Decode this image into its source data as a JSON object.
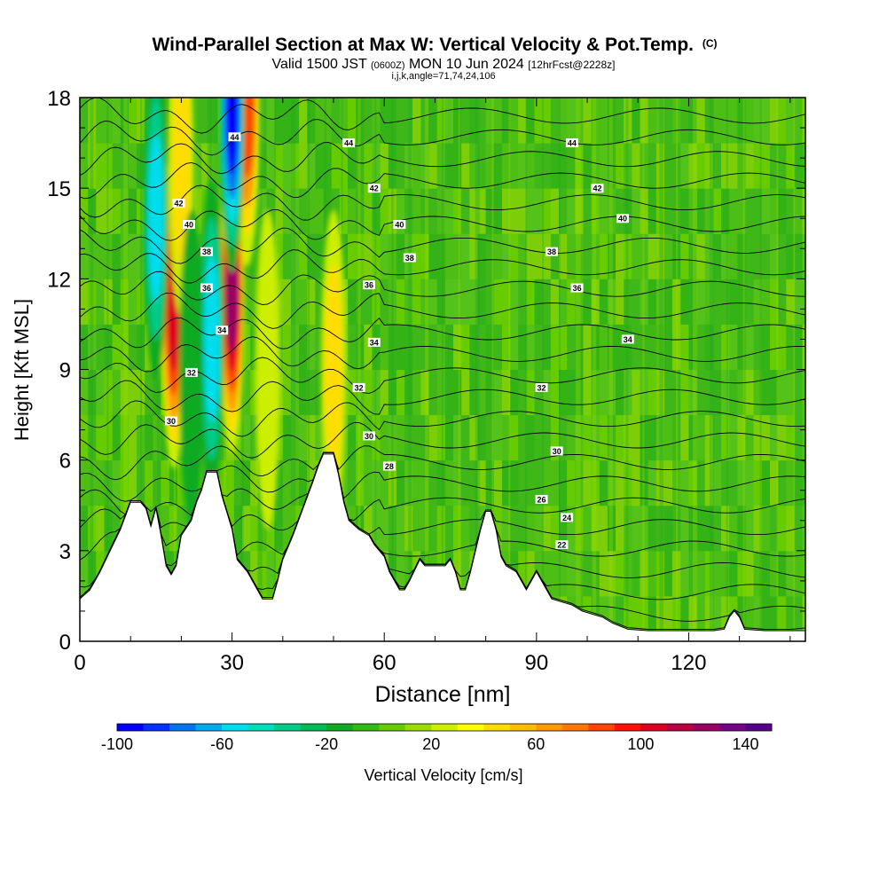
{
  "chart_data": {
    "type": "heatmap",
    "title": "Wind-Parallel Section at Max W: Vertical Velocity & Pot.Temp.",
    "title_mark": "(C)",
    "subtitle_valid": "Valid 1500 JST",
    "subtitle_utc": "(0600Z)",
    "subtitle_date": "MON 10 Jun 2024",
    "subtitle_fcst": "[12hrFcst@2228z]",
    "subtitle_indices": "i,j,k,angle=71,74,24,106",
    "xlabel": "Distance [nm]",
    "ylabel": "Height [Kft MSL]",
    "xlim": [
      0,
      143
    ],
    "ylim": [
      0,
      18
    ],
    "x_ticks": [
      0,
      30,
      60,
      90,
      120
    ],
    "x_tick_labels": [
      "0",
      "30",
      "60",
      "90",
      "120"
    ],
    "y_ticks": [
      0,
      3,
      6,
      9,
      12,
      15,
      18
    ],
    "y_tick_labels": [
      "0",
      "3",
      "6",
      "9",
      "12",
      "15",
      "18"
    ],
    "colorbar": {
      "label": "Vertical Velocity [cm/s]",
      "min": -100,
      "max": 150,
      "step": 10,
      "tick_values": [
        -100,
        -60,
        -20,
        20,
        60,
        100,
        140
      ],
      "tick_labels": [
        "-100",
        "-60",
        "-20",
        "20",
        "60",
        "100",
        "140"
      ],
      "colors": [
        "#0000ff",
        "#0033ff",
        "#0077ee",
        "#00aaee",
        "#00ddee",
        "#00ddbb",
        "#00cc88",
        "#00bb55",
        "#11aa22",
        "#33bb11",
        "#66cc00",
        "#99dd00",
        "#ccee00",
        "#ffff00",
        "#ffdd00",
        "#ffbb00",
        "#ff9900",
        "#ff7700",
        "#ff4400",
        "#ff1100",
        "#dd0022",
        "#bb0044",
        "#990066",
        "#770088",
        "#550088"
      ]
    },
    "terrain": [
      [
        0,
        1.4
      ],
      [
        2,
        1.7
      ],
      [
        4,
        2.3
      ],
      [
        6,
        3.0
      ],
      [
        8,
        3.7
      ],
      [
        10,
        4.6
      ],
      [
        12,
        4.6
      ],
      [
        13,
        4.4
      ],
      [
        14,
        3.8
      ],
      [
        15,
        4.4
      ],
      [
        16,
        3.5
      ],
      [
        17,
        2.5
      ],
      [
        18,
        2.2
      ],
      [
        19,
        2.5
      ],
      [
        20,
        3.5
      ],
      [
        22,
        4.0
      ],
      [
        23,
        4.6
      ],
      [
        24,
        5.0
      ],
      [
        25,
        5.6
      ],
      [
        27,
        5.6
      ],
      [
        28,
        4.8
      ],
      [
        30,
        3.7
      ],
      [
        31,
        2.7
      ],
      [
        33,
        2.3
      ],
      [
        34,
        2.0
      ],
      [
        35,
        1.7
      ],
      [
        36,
        1.4
      ],
      [
        38,
        1.4
      ],
      [
        39,
        2.0
      ],
      [
        40,
        2.7
      ],
      [
        42,
        3.5
      ],
      [
        44,
        4.4
      ],
      [
        46,
        5.3
      ],
      [
        47,
        5.8
      ],
      [
        48,
        6.2
      ],
      [
        50,
        6.2
      ],
      [
        51,
        5.5
      ],
      [
        52,
        4.6
      ],
      [
        53,
        4.0
      ],
      [
        55,
        3.7
      ],
      [
        57,
        3.5
      ],
      [
        58,
        3.2
      ],
      [
        60,
        2.8
      ],
      [
        61,
        2.3
      ],
      [
        62,
        2.0
      ],
      [
        63,
        1.7
      ],
      [
        64,
        1.7
      ],
      [
        65,
        2.0
      ],
      [
        67,
        2.7
      ],
      [
        68,
        2.5
      ],
      [
        70,
        2.5
      ],
      [
        72,
        2.5
      ],
      [
        73,
        2.7
      ],
      [
        74,
        2.3
      ],
      [
        75,
        1.7
      ],
      [
        76,
        1.7
      ],
      [
        77,
        2.3
      ],
      [
        79,
        3.7
      ],
      [
        80,
        4.3
      ],
      [
        81,
        4.3
      ],
      [
        82,
        3.7
      ],
      [
        83,
        2.8
      ],
      [
        84,
        2.5
      ],
      [
        86,
        2.3
      ],
      [
        87,
        2.0
      ],
      [
        88,
        1.7
      ],
      [
        89,
        2.0
      ],
      [
        90,
        2.3
      ],
      [
        91,
        2.0
      ],
      [
        92,
        1.7
      ],
      [
        93,
        1.4
      ],
      [
        95,
        1.3
      ],
      [
        97,
        1.2
      ],
      [
        99,
        1.0
      ],
      [
        101,
        0.9
      ],
      [
        103,
        0.8
      ],
      [
        105,
        0.6
      ],
      [
        108,
        0.4
      ],
      [
        112,
        0.35
      ],
      [
        118,
        0.35
      ],
      [
        125,
        0.35
      ],
      [
        127,
        0.4
      ],
      [
        128,
        0.8
      ],
      [
        129,
        1.0
      ],
      [
        130,
        0.8
      ],
      [
        131,
        0.4
      ],
      [
        135,
        0.35
      ],
      [
        140,
        0.35
      ],
      [
        143,
        0.35
      ]
    ],
    "updrafts": [
      {
        "x": 18.5,
        "y": 11.0,
        "peak_w": 110
      },
      {
        "x": 30.0,
        "y": 11.5,
        "peak_w": 120
      },
      {
        "x": 33.0,
        "y": 17.7,
        "peak_w": 80
      },
      {
        "x": 20.0,
        "y": 16.0,
        "peak_w": 40
      },
      {
        "x": 50.0,
        "y": 9.0,
        "peak_w": 40
      },
      {
        "x": 37.0,
        "y": 9.0,
        "peak_w": 25
      }
    ],
    "downdrafts": [
      {
        "x": 30.0,
        "y": 17.5,
        "peak_w": -100
      },
      {
        "x": 26.0,
        "y": 10.0,
        "peak_w": -70
      },
      {
        "x": 15.0,
        "y": 14.0,
        "peak_w": -60
      },
      {
        "x": 22.0,
        "y": 9.0,
        "peak_w": -30
      }
    ],
    "theta_contours": {
      "interval": 1,
      "min": 21,
      "max": 45,
      "labels": [
        {
          "value": "22",
          "x": 95,
          "y": 3.2
        },
        {
          "value": "24",
          "x": 96,
          "y": 4.1
        },
        {
          "value": "26",
          "x": 91,
          "y": 4.7
        },
        {
          "value": "28",
          "x": 61,
          "y": 5.8
        },
        {
          "value": "30",
          "x": 57,
          "y": 6.8
        },
        {
          "value": "30",
          "x": 94,
          "y": 6.3
        },
        {
          "value": "30",
          "x": 18,
          "y": 7.3
        },
        {
          "value": "32",
          "x": 55,
          "y": 8.4
        },
        {
          "value": "32",
          "x": 91,
          "y": 8.4
        },
        {
          "value": "32",
          "x": 22,
          "y": 8.9
        },
        {
          "value": "34",
          "x": 58,
          "y": 9.9
        },
        {
          "value": "34",
          "x": 108,
          "y": 10.0
        },
        {
          "value": "34",
          "x": 28,
          "y": 10.3
        },
        {
          "value": "36",
          "x": 57,
          "y": 11.8
        },
        {
          "value": "36",
          "x": 98,
          "y": 11.7
        },
        {
          "value": "36",
          "x": 25,
          "y": 11.7
        },
        {
          "value": "38",
          "x": 65,
          "y": 12.7
        },
        {
          "value": "38",
          "x": 93,
          "y": 12.9
        },
        {
          "value": "38",
          "x": 25,
          "y": 12.9
        },
        {
          "value": "40",
          "x": 63,
          "y": 13.8
        },
        {
          "value": "40",
          "x": 107,
          "y": 14.0
        },
        {
          "value": "40",
          "x": 21.5,
          "y": 13.8
        },
        {
          "value": "42",
          "x": 58,
          "y": 15.0
        },
        {
          "value": "42",
          "x": 102,
          "y": 15.0
        },
        {
          "value": "42",
          "x": 19.5,
          "y": 14.5
        },
        {
          "value": "44",
          "x": 53,
          "y": 16.5
        },
        {
          "value": "44",
          "x": 97,
          "y": 16.5
        },
        {
          "value": "44",
          "x": 30.5,
          "y": 16.7
        }
      ]
    }
  }
}
